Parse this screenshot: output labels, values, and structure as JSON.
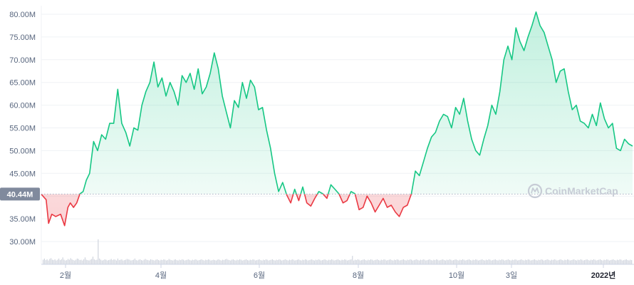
{
  "chart_data": {
    "type": "area",
    "y_ticks": [
      "30.00M",
      "35.00M",
      "40.00M",
      "45.00M",
      "50.00M",
      "55.00M",
      "60.00M",
      "65.00M",
      "70.00M",
      "75.00M",
      "80.00M"
    ],
    "y_tick_values": [
      30,
      35,
      40,
      45,
      50,
      55,
      60,
      65,
      70,
      75,
      80
    ],
    "ylim": [
      25.5,
      82.5
    ],
    "x_ticks": [
      "2월",
      "4월",
      "6월",
      "8월",
      "10월",
      "3일",
      "2022년"
    ],
    "x_tick_positions": [
      2.0,
      4.0,
      6.0,
      8.0,
      10.0,
      11.1,
      13.0
    ],
    "xlim": [
      1.48,
      13.45
    ],
    "baseline_value": 40.44,
    "baseline_label": "40.44M",
    "grid": true,
    "colors": {
      "up": "#16c784",
      "down": "#ea3943",
      "volume": "#ccd1db",
      "grid": "#eff2f5",
      "baseline_tag": "#808a9d"
    },
    "series": [
      {
        "values": [
          [
            1.5,
            40.4
          ],
          [
            1.56,
            39.2
          ],
          [
            1.59,
            34.0
          ],
          [
            1.63,
            36.0
          ],
          [
            1.68,
            35.5
          ],
          [
            1.74,
            36.0
          ],
          [
            1.79,
            33.5
          ],
          [
            1.83,
            37.5
          ],
          [
            1.86,
            38.5
          ],
          [
            1.9,
            37.5
          ],
          [
            1.94,
            38.5
          ],
          [
            1.98,
            40.5
          ],
          [
            2.02,
            41.0
          ],
          [
            2.06,
            43.5
          ],
          [
            2.1,
            45.0
          ],
          [
            2.15,
            52.0
          ],
          [
            2.2,
            50.0
          ],
          [
            2.25,
            53.5
          ],
          [
            2.3,
            52.5
          ],
          [
            2.35,
            56.0
          ],
          [
            2.4,
            56.0
          ],
          [
            2.45,
            63.5
          ],
          [
            2.5,
            56.0
          ],
          [
            2.55,
            54.0
          ],
          [
            2.6,
            51.0
          ],
          [
            2.65,
            55.0
          ],
          [
            2.7,
            54.5
          ],
          [
            2.75,
            60.0
          ],
          [
            2.8,
            63.0
          ],
          [
            2.85,
            65.0
          ],
          [
            2.9,
            69.5
          ],
          [
            2.95,
            64.0
          ],
          [
            3.0,
            66.0
          ],
          [
            3.05,
            62.0
          ],
          [
            3.1,
            65.0
          ],
          [
            3.15,
            63.0
          ],
          [
            3.2,
            60.0
          ],
          [
            3.25,
            66.5
          ],
          [
            3.3,
            65.0
          ],
          [
            3.35,
            67.0
          ],
          [
            3.4,
            63.5
          ],
          [
            3.45,
            68.0
          ],
          [
            3.5,
            62.5
          ],
          [
            3.55,
            64.0
          ],
          [
            3.6,
            67.0
          ],
          [
            3.65,
            71.5
          ],
          [
            3.7,
            68.0
          ],
          [
            3.75,
            62.0
          ],
          [
            3.8,
            58.5
          ],
          [
            3.85,
            55.0
          ],
          [
            3.9,
            61.0
          ],
          [
            3.95,
            59.5
          ],
          [
            4.0,
            65.0
          ],
          [
            4.05,
            61.5
          ],
          [
            4.1,
            65.5
          ],
          [
            4.15,
            64.0
          ],
          [
            4.2,
            59.0
          ],
          [
            4.25,
            59.5
          ],
          [
            4.3,
            54.5
          ],
          [
            4.35,
            50.5
          ],
          [
            4.4,
            45.0
          ],
          [
            4.45,
            41.0
          ],
          [
            4.5,
            43.0
          ],
          [
            4.55,
            40.3
          ],
          [
            4.6,
            38.5
          ],
          [
            4.65,
            41.5
          ],
          [
            4.7,
            39.0
          ],
          [
            4.75,
            42.0
          ],
          [
            4.8,
            38.5
          ],
          [
            4.85,
            37.8
          ],
          [
            4.9,
            39.5
          ],
          [
            4.95,
            41.0
          ],
          [
            5.0,
            40.5
          ],
          [
            5.05,
            39.5
          ],
          [
            5.1,
            42.5
          ],
          [
            5.15,
            41.5
          ],
          [
            5.2,
            40.5
          ],
          [
            5.25,
            38.5
          ],
          [
            5.3,
            39.0
          ],
          [
            5.35,
            41.0
          ],
          [
            5.4,
            40.5
          ],
          [
            5.45,
            37.0
          ],
          [
            5.5,
            37.5
          ],
          [
            5.55,
            40.0
          ],
          [
            5.6,
            38.5
          ],
          [
            5.65,
            36.5
          ],
          [
            5.7,
            38.0
          ],
          [
            5.75,
            39.5
          ],
          [
            5.8,
            37.5
          ],
          [
            5.85,
            38.0
          ],
          [
            5.9,
            36.5
          ],
          [
            5.95,
            35.5
          ],
          [
            6.0,
            37.5
          ],
          [
            6.05,
            38.0
          ],
          [
            6.1,
            40.5
          ],
          [
            6.15,
            45.5
          ],
          [
            6.2,
            44.5
          ],
          [
            6.25,
            47.5
          ],
          [
            6.3,
            50.5
          ],
          [
            6.35,
            53.0
          ],
          [
            6.4,
            54.0
          ],
          [
            6.45,
            56.5
          ],
          [
            6.5,
            58.0
          ],
          [
            6.55,
            57.5
          ],
          [
            6.6,
            55.0
          ],
          [
            6.65,
            59.5
          ],
          [
            6.7,
            58.0
          ],
          [
            6.75,
            61.5
          ],
          [
            6.8,
            56.5
          ],
          [
            6.85,
            52.5
          ],
          [
            6.9,
            50.0
          ],
          [
            6.95,
            49.0
          ],
          [
            7.0,
            52.5
          ],
          [
            7.05,
            55.5
          ],
          [
            7.1,
            60.0
          ],
          [
            7.15,
            58.0
          ],
          [
            7.2,
            63.0
          ],
          [
            7.25,
            70.0
          ],
          [
            7.3,
            73.0
          ],
          [
            7.35,
            70.0
          ],
          [
            7.4,
            77.0
          ],
          [
            7.45,
            74.0
          ],
          [
            7.5,
            72.0
          ],
          [
            7.55,
            75.0
          ],
          [
            7.6,
            77.5
          ],
          [
            7.65,
            80.5
          ],
          [
            7.7,
            77.5
          ],
          [
            7.75,
            76.0
          ],
          [
            7.8,
            73.0
          ],
          [
            7.85,
            70.0
          ],
          [
            7.9,
            65.0
          ],
          [
            7.95,
            67.5
          ],
          [
            8.0,
            68.0
          ],
          [
            8.05,
            63.0
          ],
          [
            8.1,
            59.0
          ],
          [
            8.15,
            60.0
          ],
          [
            8.2,
            56.5
          ],
          [
            8.25,
            56.0
          ],
          [
            8.3,
            55.0
          ],
          [
            8.35,
            58.0
          ],
          [
            8.4,
            55.5
          ],
          [
            8.45,
            60.5
          ],
          [
            8.5,
            57.0
          ],
          [
            8.55,
            55.0
          ],
          [
            8.6,
            56.0
          ],
          [
            8.65,
            50.5
          ],
          [
            8.7,
            50.0
          ],
          [
            8.75,
            52.5
          ],
          [
            8.8,
            51.5
          ],
          [
            8.85,
            51.0
          ]
        ]
      }
    ],
    "volume": [
      1.2,
      1.5,
      1.1,
      1.3,
      1.0,
      1.4,
      1.6,
      1.2,
      1.1,
      1.3,
      1.0,
      1.2,
      1.5,
      1.1,
      1.3,
      1.8,
      1.2,
      1.0,
      1.1,
      1.4,
      1.2,
      1.6,
      1.3,
      1.1,
      1.0,
      1.2,
      1.5,
      1.4,
      1.1,
      1.2,
      1.0,
      1.3,
      1.8,
      1.2,
      1.1,
      1.0,
      1.2,
      1.4,
      2.0,
      1.3,
      1.1,
      1.2,
      6.5,
      1.5,
      1.2,
      1.0,
      1.1,
      1.3,
      1.2,
      1.0,
      1.1,
      1.2,
      1.4,
      1.1,
      1.3,
      1.2,
      1.0,
      1.5,
      1.1,
      1.2,
      1.3,
      1.0,
      1.1,
      1.2,
      1.4,
      1.3,
      1.2,
      1.0,
      1.1,
      1.2,
      1.5,
      1.1,
      1.0,
      1.2,
      1.3,
      1.1,
      1.0,
      1.2,
      1.4,
      1.2,
      1.1,
      1.0,
      1.3,
      1.2,
      1.1,
      1.0,
      1.2,
      1.3,
      1.1,
      1.0,
      1.2,
      1.1,
      1.3,
      1.2,
      1.0,
      1.1,
      1.4,
      1.2,
      1.1,
      1.0,
      1.2,
      1.3,
      1.1,
      1.0,
      1.2,
      1.1,
      1.3,
      1.2,
      1.0,
      1.1,
      1.2,
      1.3,
      1.1,
      1.0,
      1.2,
      1.1,
      1.3,
      1.2,
      1.0,
      1.1,
      1.2,
      1.3,
      1.1,
      1.0,
      1.2,
      1.1,
      1.3,
      1.2,
      1.0,
      1.1,
      1.2,
      1.1,
      1.0,
      1.2,
      1.3,
      1.1,
      1.0,
      1.2,
      1.1,
      1.3,
      1.4,
      1.2,
      1.1,
      1.0,
      1.2,
      1.3,
      1.1,
      1.0,
      1.2,
      1.1,
      1.3,
      1.2,
      1.0,
      1.1,
      1.2,
      1.3,
      1.1,
      1.0,
      1.2,
      1.1,
      1.3,
      1.2,
      1.0,
      1.1,
      1.2,
      1.3,
      1.1,
      1.0,
      1.2,
      1.1,
      1.3,
      1.2,
      1.0,
      1.1,
      1.2,
      1.3,
      1.1,
      1.0,
      1.2,
      1.1,
      1.3,
      1.2,
      1.0,
      1.1,
      1.2,
      1.3,
      1.1,
      1.0,
      1.2,
      1.1,
      1.3,
      1.2,
      1.0,
      1.1,
      1.2,
      1.3,
      1.1,
      1.0,
      1.2,
      1.1,
      1.3,
      1.2,
      1.0,
      1.1,
      1.2,
      1.3,
      1.1,
      1.0,
      1.2,
      1.1,
      1.3,
      1.2,
      1.0,
      1.1,
      1.2,
      1.3,
      1.1,
      1.0,
      1.2,
      1.1,
      1.3,
      1.2,
      1.0,
      1.1,
      1.2,
      1.3,
      1.1,
      1.0,
      1.2,
      1.1,
      1.3,
      1.2,
      1.0,
      1.1,
      1.2,
      1.3,
      2.2,
      1.0,
      1.2,
      1.1,
      1.3,
      1.2,
      1.0,
      1.1,
      1.2,
      1.3,
      1.1,
      1.0,
      1.2,
      1.1,
      1.3,
      1.2,
      1.0,
      1.1,
      1.2,
      1.3,
      1.1,
      1.0,
      1.2,
      1.1,
      1.3,
      1.2,
      1.0,
      1.1,
      1.2,
      1.3,
      1.1,
      1.0,
      1.2,
      1.1,
      1.3,
      1.2,
      1.0,
      1.1,
      1.2,
      1.3,
      1.1,
      1.0,
      1.2,
      1.1,
      1.3,
      1.2,
      1.0,
      1.1,
      1.2,
      1.3,
      1.1,
      1.0,
      1.2,
      1.1,
      1.3,
      1.2,
      1.0,
      1.1,
      1.2,
      1.3,
      1.1,
      1.0,
      1.2,
      1.1,
      1.3,
      1.2,
      1.0,
      1.1,
      1.2,
      1.3,
      1.1,
      1.0,
      1.2,
      1.1,
      1.3,
      1.2,
      1.0,
      1.1,
      1.2,
      1.3,
      1.1,
      1.0,
      1.2,
      1.1,
      1.3,
      1.2,
      1.0,
      1.1,
      1.2,
      1.3,
      1.1,
      1.0,
      1.2,
      1.1,
      1.3,
      1.2,
      1.0,
      1.1,
      1.2,
      1.3,
      1.1,
      1.0,
      1.2,
      1.1,
      1.3,
      1.2,
      1.0,
      1.1,
      1.2,
      1.3,
      1.1,
      1.0,
      1.2,
      1.1,
      1.3,
      1.2,
      1.0,
      1.1,
      1.2,
      1.3,
      1.1,
      1.0,
      1.2,
      1.1,
      1.3,
      1.2,
      1.0,
      1.1,
      1.2,
      1.3,
      1.1,
      1.0,
      1.2,
      1.1,
      1.3,
      1.2,
      1.0,
      1.1,
      1.2,
      1.3,
      1.1,
      1.0,
      1.2,
      1.1,
      1.3,
      1.2,
      1.0,
      1.1,
      1.2,
      1.3,
      1.1,
      1.0,
      1.2,
      1.1,
      1.3,
      1.2,
      1.0,
      1.1,
      1.2,
      1.3,
      1.1,
      1.0,
      1.2,
      1.1,
      1.3,
      1.2,
      1.0,
      1.1,
      1.2,
      1.3,
      1.1,
      1.0,
      1.2,
      1.1,
      1.3,
      1.2,
      1.0,
      1.1,
      1.2,
      1.3,
      1.1,
      1.0,
      1.2,
      1.1,
      1.3,
      1.2,
      1.0,
      1.1,
      1.2,
      1.3,
      1.1,
      1.0,
      1.2,
      1.1,
      1.3,
      1.2,
      1.0,
      1.1,
      1.2,
      1.3,
      1.1,
      1.0,
      1.2,
      1.1,
      1.3,
      1.2,
      1.0,
      1.1,
      1.2,
      1.3,
      1.1,
      1.0,
      1.2,
      1.1
    ]
  },
  "watermark": {
    "text": "CoinMarketCap",
    "icon": "coinmarketcap-logo-icon"
  }
}
